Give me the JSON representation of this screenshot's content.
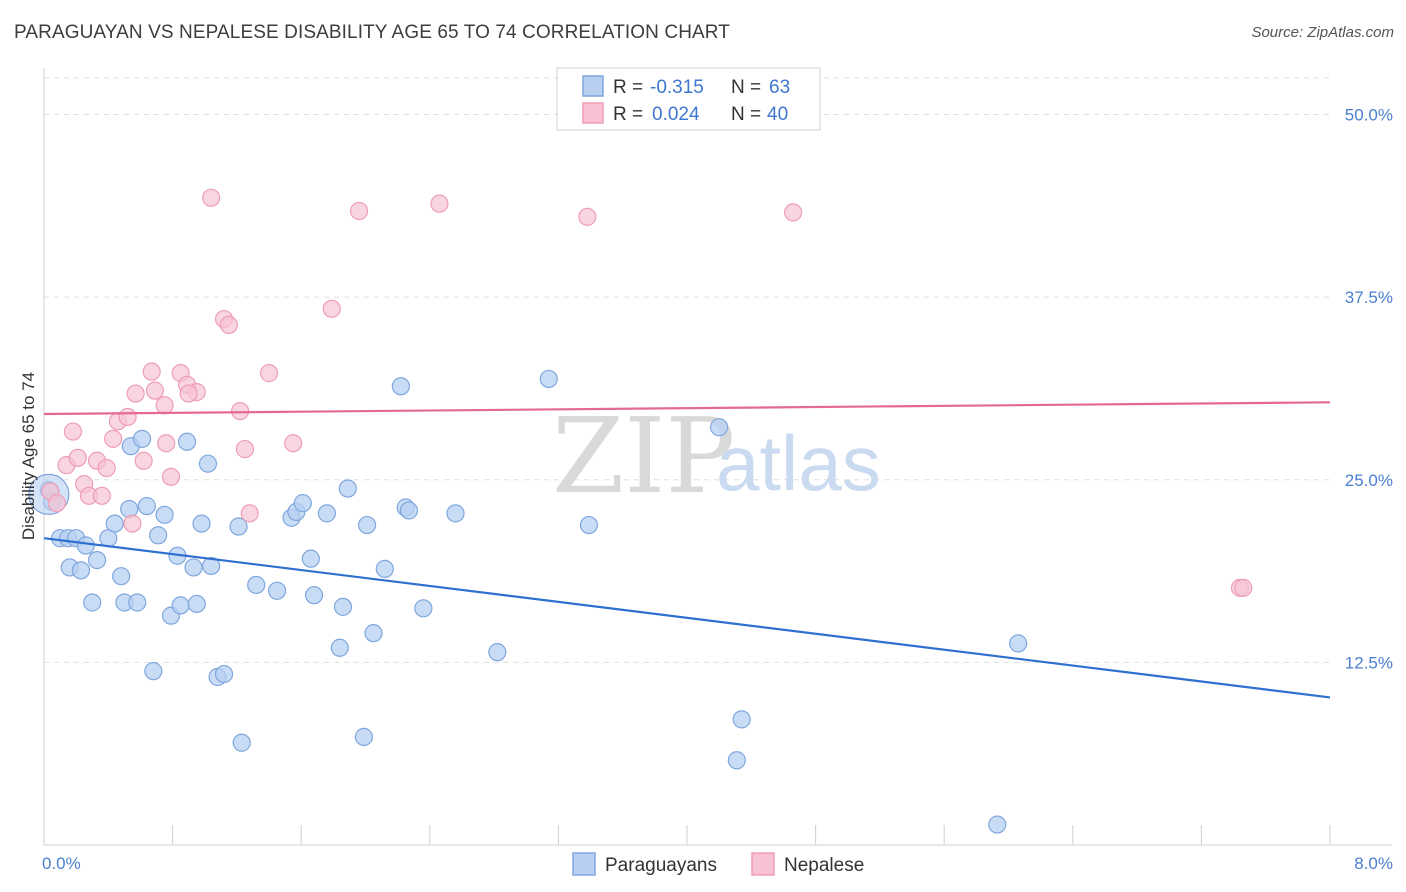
{
  "title": "PARAGUAYAN VS NEPALESE DISABILITY AGE 65 TO 74 CORRELATION CHART",
  "source": "Source: ZipAtlas.com",
  "watermark": {
    "zip": "ZIP",
    "atlas": "atlas"
  },
  "colors": {
    "blue_fill": "#b7d0f2",
    "blue_stroke": "#7fa7de",
    "blue_line": "#2f6fd0",
    "pink_fill": "#f7c3d3",
    "pink_stroke": "#ee9db6",
    "pink_line": "#e46a93",
    "grid": "#dddddd",
    "tick_text": "#4a7fcf"
  },
  "legend": {
    "rows": [
      {
        "r_label": "R =",
        "r_value": "-0.315",
        "n_label": "N =",
        "n_value": "63"
      },
      {
        "r_label": "R =",
        "r_value": "0.024",
        "n_label": "N =",
        "n_value": "40"
      }
    ]
  },
  "chart_data": {
    "type": "scatter",
    "xlabel": "",
    "ylabel": "Disability Age 65 to 74",
    "xlim": [
      0,
      8
    ],
    "ylim": [
      0,
      52.5
    ],
    "x_tick_labels": [
      "0.0%",
      "8.0%"
    ],
    "y_ticks": [
      12.5,
      25.0,
      37.5,
      50.0
    ],
    "y_tick_labels": [
      "12.5%",
      "25.0%",
      "37.5%",
      "50.0%"
    ],
    "grid": "dashed horizontal",
    "legend_position": "top-center",
    "series": [
      {
        "name": "Paraguayans",
        "points": [
          [
            0.03,
            24.3
          ],
          [
            0.1,
            21.0
          ],
          [
            0.15,
            21.0
          ],
          [
            0.16,
            19.0
          ],
          [
            0.2,
            21.0
          ],
          [
            0.23,
            18.8
          ],
          [
            0.26,
            20.5
          ],
          [
            0.3,
            16.6
          ],
          [
            0.33,
            19.5
          ],
          [
            0.4,
            21.0
          ],
          [
            0.44,
            22.0
          ],
          [
            0.48,
            18.4
          ],
          [
            0.5,
            16.6
          ],
          [
            0.54,
            27.3
          ],
          [
            0.53,
            23.0
          ],
          [
            0.58,
            16.6
          ],
          [
            0.61,
            27.8
          ],
          [
            0.64,
            23.2
          ],
          [
            0.68,
            11.9
          ],
          [
            0.71,
            21.2
          ],
          [
            0.75,
            22.6
          ],
          [
            0.79,
            15.7
          ],
          [
            0.83,
            19.8
          ],
          [
            0.85,
            16.4
          ],
          [
            0.89,
            27.6
          ],
          [
            0.93,
            19.0
          ],
          [
            0.95,
            16.5
          ],
          [
            0.98,
            22.0
          ],
          [
            1.02,
            26.1
          ],
          [
            1.04,
            19.1
          ],
          [
            1.08,
            11.5
          ],
          [
            1.12,
            11.7
          ],
          [
            1.21,
            21.8
          ],
          [
            1.23,
            7.0
          ],
          [
            1.32,
            17.8
          ],
          [
            1.45,
            17.4
          ],
          [
            1.54,
            22.4
          ],
          [
            1.57,
            22.8
          ],
          [
            1.61,
            23.4
          ],
          [
            1.66,
            19.6
          ],
          [
            1.68,
            17.1
          ],
          [
            1.76,
            22.7
          ],
          [
            1.84,
            13.5
          ],
          [
            1.86,
            16.3
          ],
          [
            1.89,
            24.4
          ],
          [
            1.99,
            7.4
          ],
          [
            2.01,
            21.9
          ],
          [
            2.05,
            14.5
          ],
          [
            2.12,
            18.9
          ],
          [
            2.22,
            31.4
          ],
          [
            2.25,
            23.1
          ],
          [
            2.27,
            22.9
          ],
          [
            2.36,
            16.2
          ],
          [
            2.56,
            22.7
          ],
          [
            2.82,
            13.2
          ],
          [
            3.14,
            31.9
          ],
          [
            3.39,
            21.9
          ],
          [
            4.2,
            28.6
          ],
          [
            4.34,
            8.6
          ],
          [
            4.31,
            5.8
          ],
          [
            6.06,
            13.8
          ],
          [
            5.93,
            1.4
          ],
          [
            0.05,
            23.5
          ]
        ],
        "trend": {
          "x": [
            0,
            8
          ],
          "y": [
            21.0,
            10.1
          ]
        }
      },
      {
        "name": "Nepalese",
        "points": [
          [
            0.04,
            24.2
          ],
          [
            0.08,
            23.4
          ],
          [
            0.14,
            26.0
          ],
          [
            0.18,
            28.3
          ],
          [
            0.21,
            26.5
          ],
          [
            0.25,
            24.7
          ],
          [
            0.28,
            23.9
          ],
          [
            0.33,
            26.3
          ],
          [
            0.36,
            23.9
          ],
          [
            0.39,
            25.8
          ],
          [
            0.43,
            27.8
          ],
          [
            0.46,
            29.0
          ],
          [
            0.52,
            29.3
          ],
          [
            0.55,
            22.0
          ],
          [
            0.57,
            30.9
          ],
          [
            0.62,
            26.3
          ],
          [
            0.67,
            32.4
          ],
          [
            0.69,
            31.1
          ],
          [
            0.75,
            30.1
          ],
          [
            0.76,
            27.5
          ],
          [
            0.79,
            25.2
          ],
          [
            0.85,
            32.3
          ],
          [
            0.89,
            31.5
          ],
          [
            0.95,
            31.0
          ],
          [
            1.04,
            44.3
          ],
          [
            1.12,
            36.0
          ],
          [
            1.15,
            35.6
          ],
          [
            1.22,
            29.7
          ],
          [
            1.25,
            27.1
          ],
          [
            1.28,
            22.7
          ],
          [
            1.4,
            32.3
          ],
          [
            1.55,
            27.5
          ],
          [
            1.79,
            36.7
          ],
          [
            1.96,
            43.4
          ],
          [
            2.46,
            43.9
          ],
          [
            3.38,
            43.0
          ],
          [
            4.66,
            43.3
          ],
          [
            7.44,
            17.6
          ],
          [
            7.46,
            17.6
          ],
          [
            0.9,
            30.9
          ]
        ],
        "trend": {
          "x": [
            0,
            8
          ],
          "y": [
            29.5,
            30.3
          ]
        }
      }
    ]
  },
  "bottom_legend": [
    "Paraguayans",
    "Nepalese"
  ]
}
